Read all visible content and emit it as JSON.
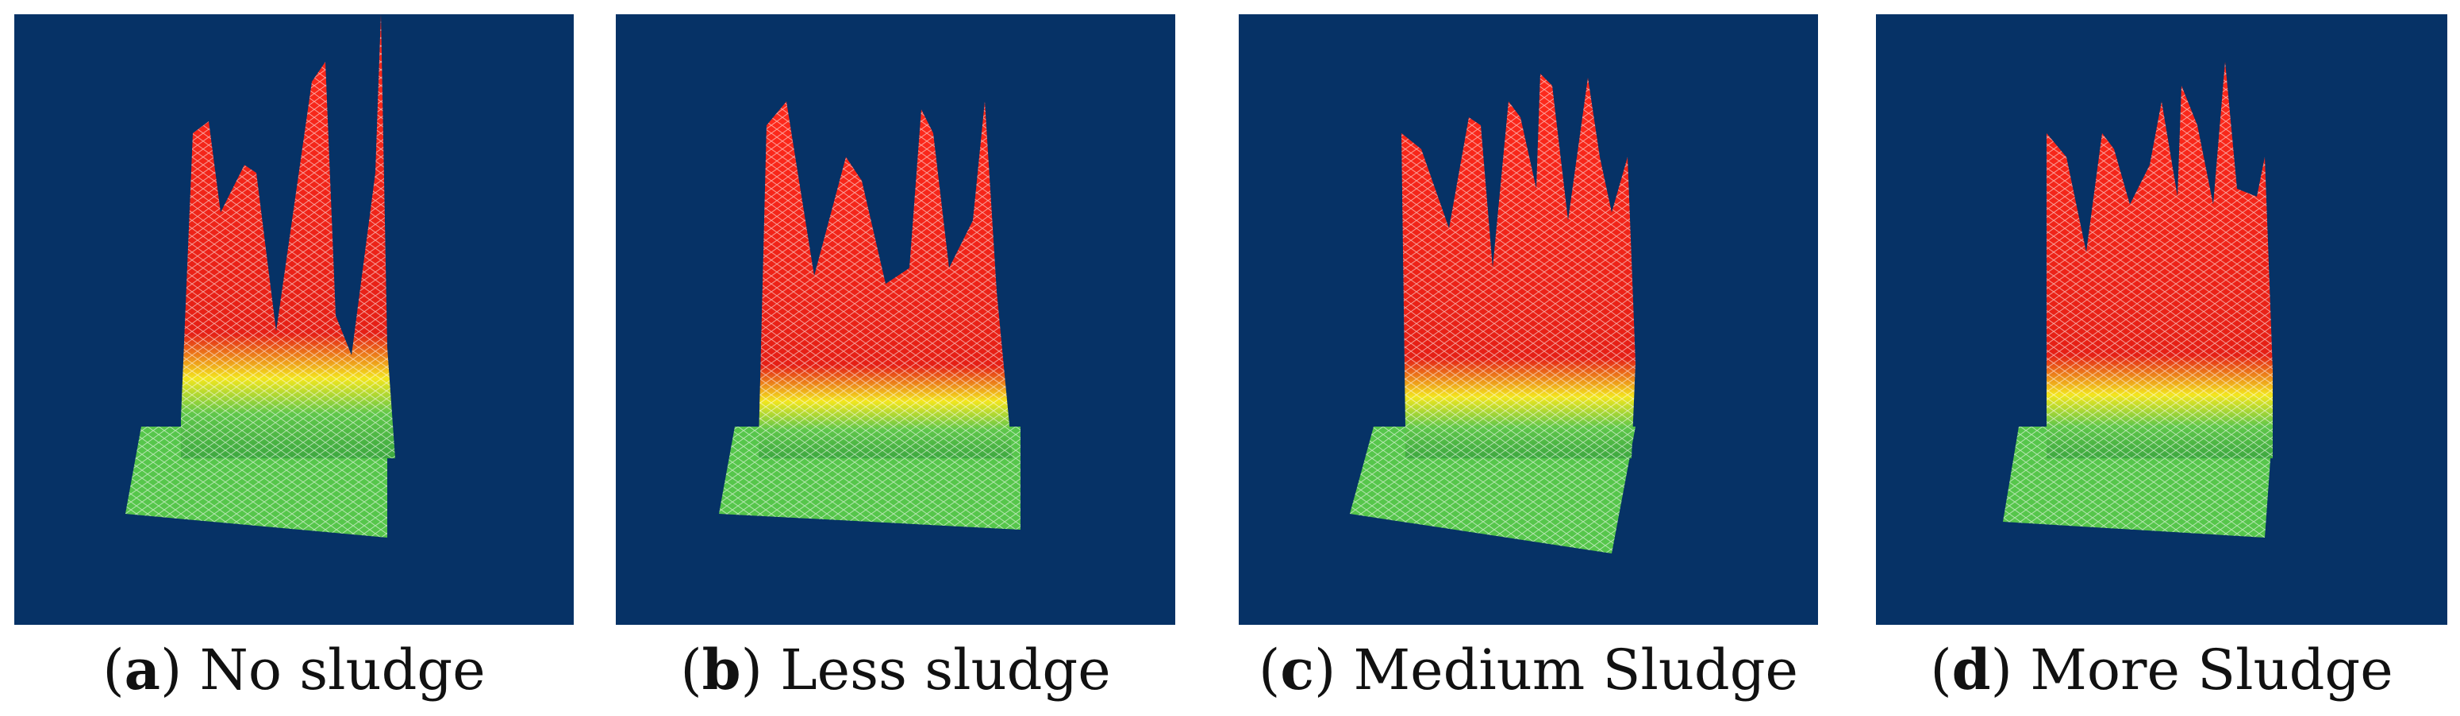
{
  "figure": {
    "background_color": "#063266",
    "surface_colors": {
      "peak": "#e8201a",
      "mid": "#f0e21c",
      "base": "#54c44b",
      "mesh": "#ffffff"
    },
    "panels": [
      {
        "id": "a",
        "label": "a",
        "caption": "No sludge"
      },
      {
        "id": "b",
        "label": "b",
        "caption": "Less sludge"
      },
      {
        "id": "c",
        "label": "c",
        "caption": "Medium Sludge"
      },
      {
        "id": "d",
        "label": "d",
        "caption": "More Sludge"
      }
    ]
  }
}
